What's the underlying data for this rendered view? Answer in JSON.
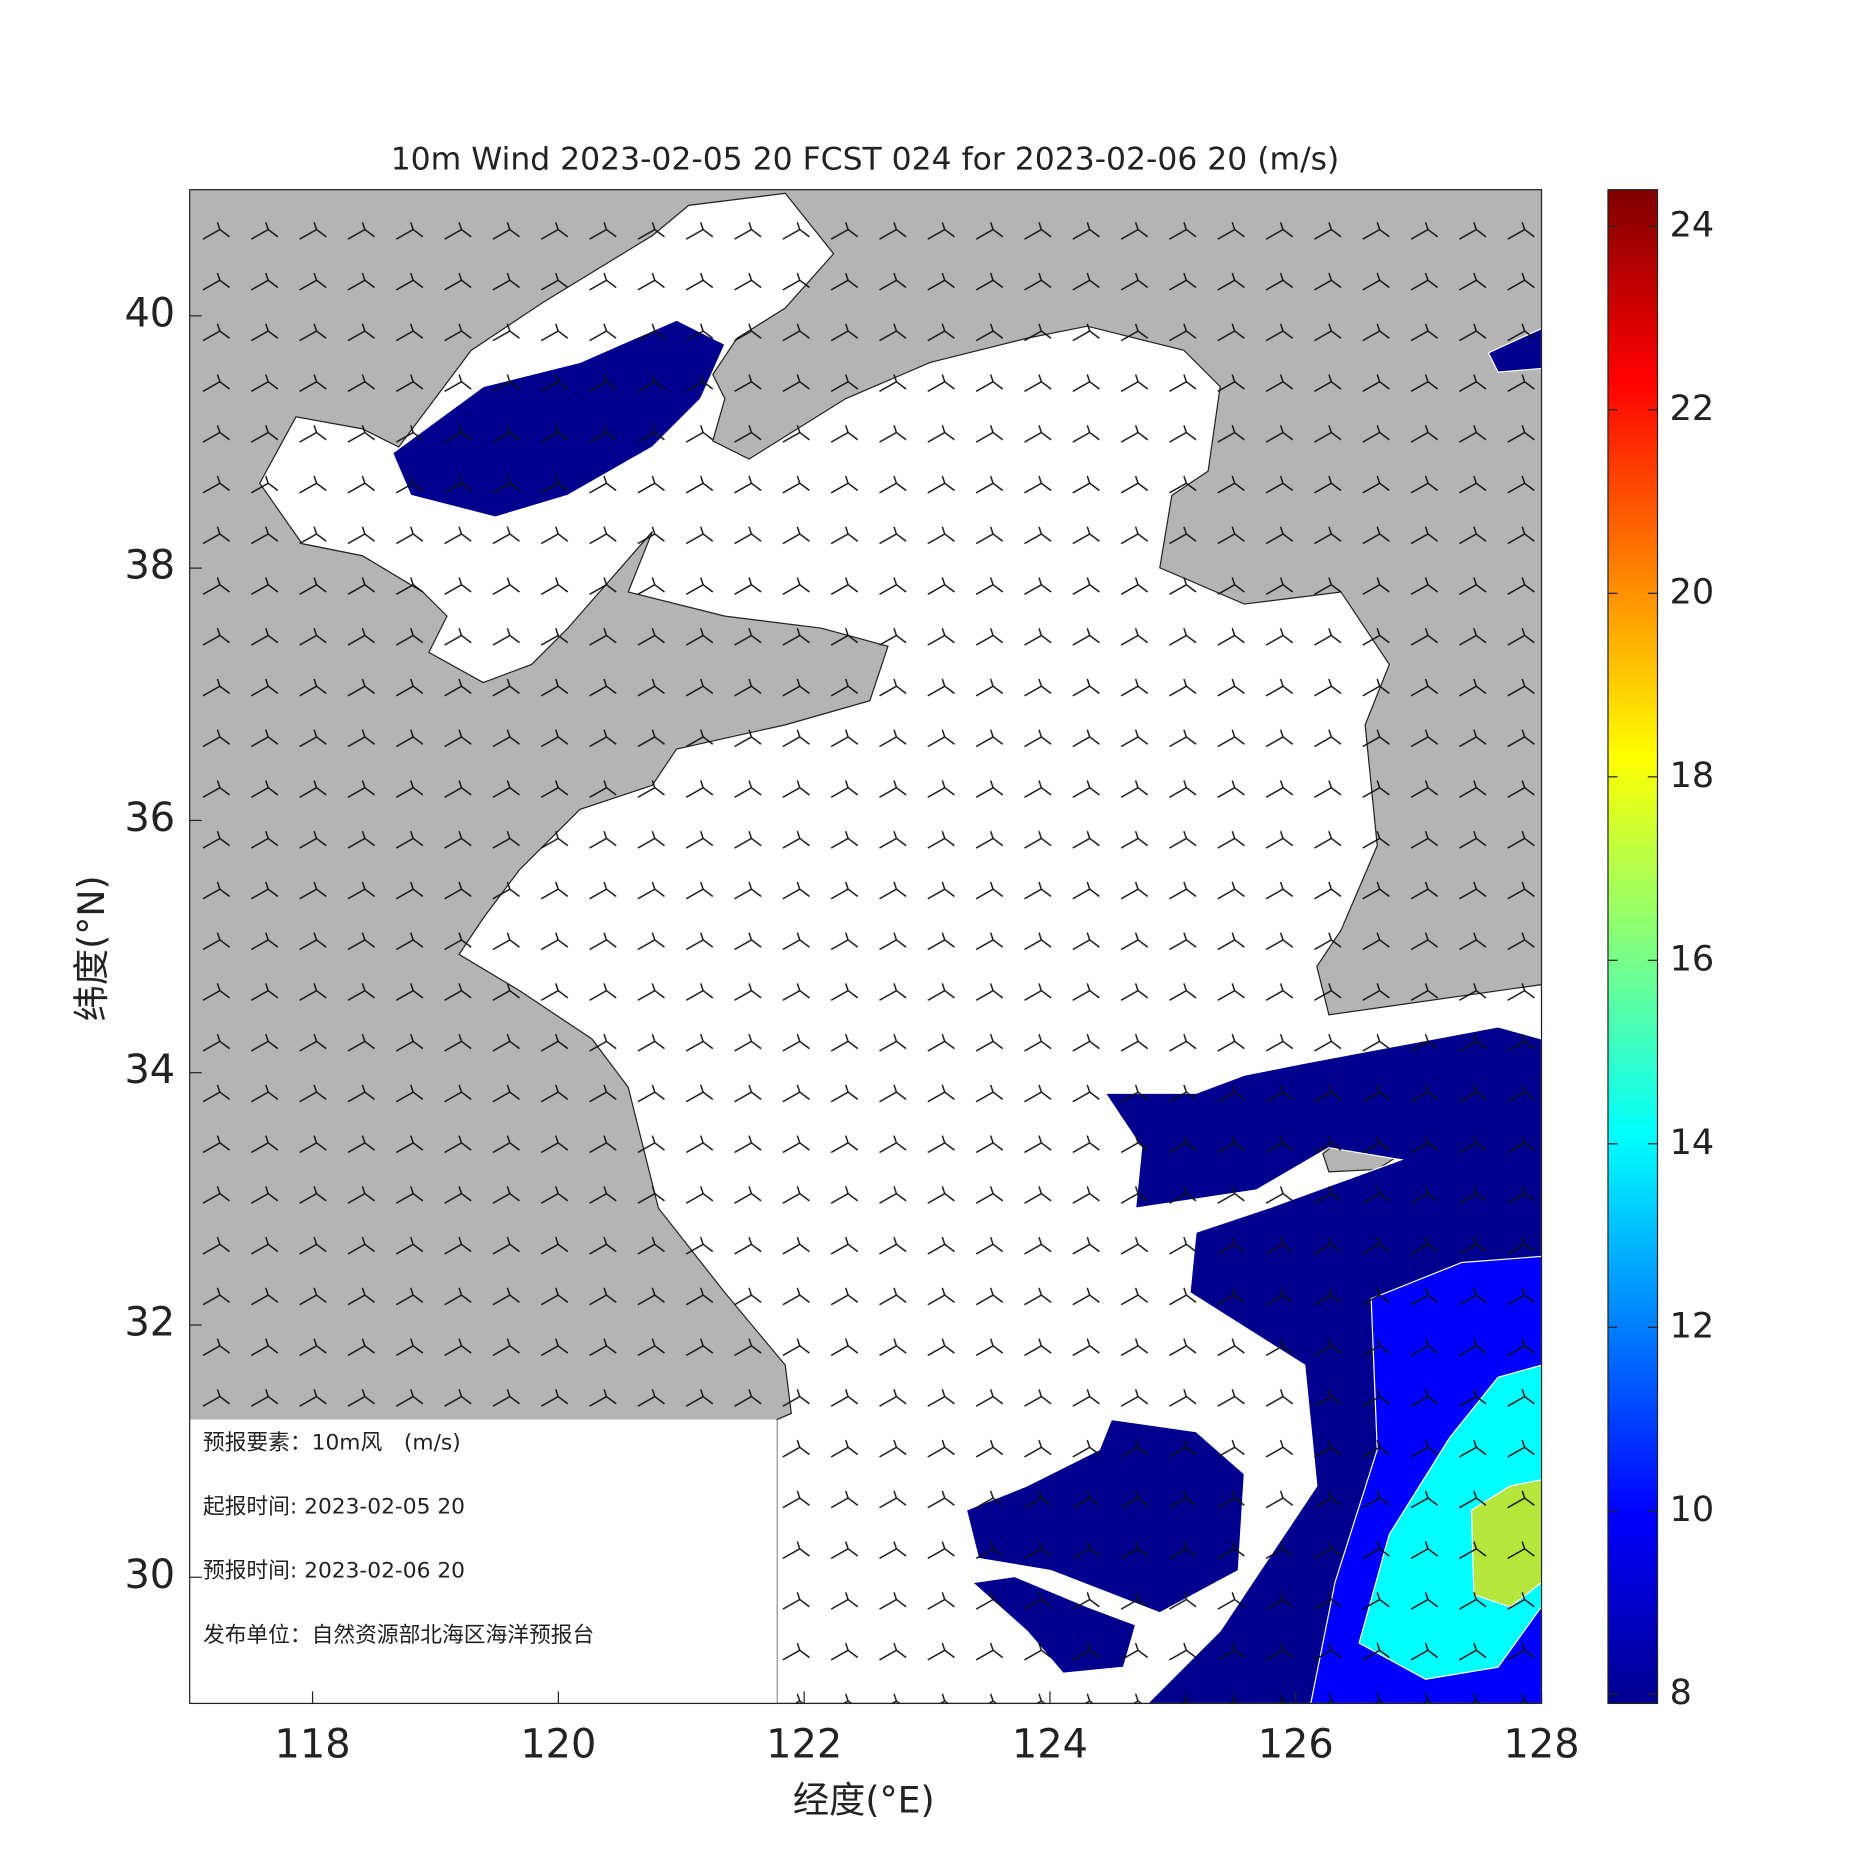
{
  "chart_data": {
    "type": "map",
    "title": "10m Wind 2023-02-05 20 FCST 024 for 2023-02-06 20 (m/s)",
    "xlabel": "经度(°E)",
    "ylabel": "纬度(°N)",
    "xlim": [
      117,
      128
    ],
    "xticks": [
      118,
      120,
      122,
      124,
      126,
      128
    ],
    "ylim": [
      29,
      41
    ],
    "yticks": [
      30,
      32,
      34,
      36,
      38,
      40
    ],
    "colorbar": {
      "lim": [
        7.9,
        24.4
      ],
      "ticks": [
        8,
        10,
        12,
        14,
        16,
        18,
        20,
        22,
        24
      ],
      "colormap": "jet"
    },
    "info": [
      "预报要素：10m风　(m/s)",
      "起报时间: 2023-02-05 20",
      "预报时间: 2023-02-06 20",
      "发布单位：自然资源部北海区海洋预报台"
    ]
  }
}
